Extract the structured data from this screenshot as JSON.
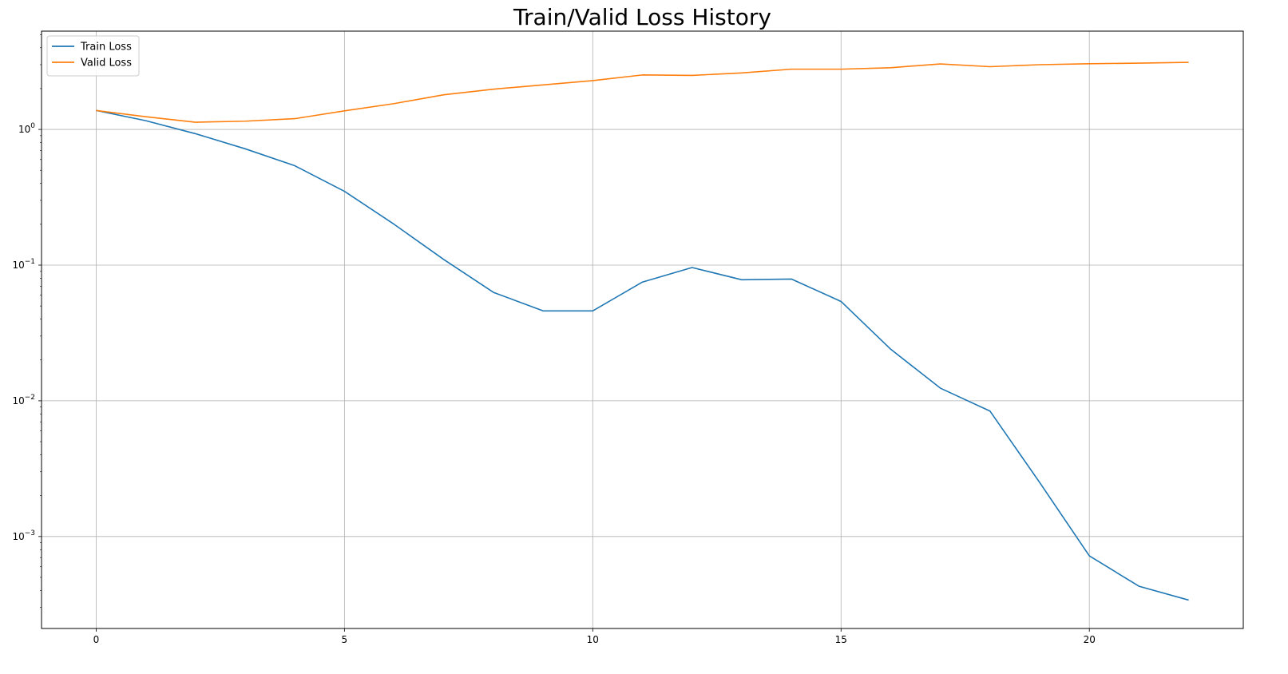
{
  "chart_data": {
    "type": "line",
    "title": "Train/Valid Loss History",
    "xlabel": "",
    "ylabel": "",
    "yscale": "log",
    "xlim": [
      -1.1,
      23.1
    ],
    "ylim": [
      0.00021,
      5.3
    ],
    "x_ticks": [
      0,
      5,
      10,
      15,
      20
    ],
    "x_tick_labels": [
      "0",
      "5",
      "10",
      "15",
      "20"
    ],
    "y_ticks": [
      0.001,
      0.01,
      0.1,
      1
    ],
    "y_tick_labels": [
      {
        "base": "10",
        "exp": "−3"
      },
      {
        "base": "10",
        "exp": "−2"
      },
      {
        "base": "10",
        "exp": "−1"
      },
      {
        "base": "10",
        "exp": "0"
      }
    ],
    "grid": true,
    "legend_position": "top-left",
    "x": [
      0,
      1,
      2,
      3,
      4,
      5,
      6,
      7,
      8,
      9,
      10,
      11,
      12,
      13,
      14,
      15,
      16,
      17,
      18,
      19,
      20,
      21,
      22
    ],
    "series": [
      {
        "name": "Train Loss",
        "color": "#1f77b4",
        "values": [
          1.38,
          1.16,
          0.93,
          0.72,
          0.54,
          0.35,
          0.2,
          0.11,
          0.063,
          0.046,
          0.046,
          0.075,
          0.096,
          0.078,
          0.079,
          0.054,
          0.024,
          0.0124,
          0.0084,
          0.0025,
          0.00072,
          0.00043,
          0.00034
        ]
      },
      {
        "name": "Valid Loss",
        "color": "#ff7f0e",
        "values": [
          1.38,
          1.24,
          1.13,
          1.15,
          1.2,
          1.37,
          1.55,
          1.8,
          1.98,
          2.13,
          2.29,
          2.52,
          2.5,
          2.61,
          2.78,
          2.78,
          2.85,
          3.04,
          2.9,
          3.0,
          3.05,
          3.08,
          3.12
        ]
      }
    ]
  }
}
